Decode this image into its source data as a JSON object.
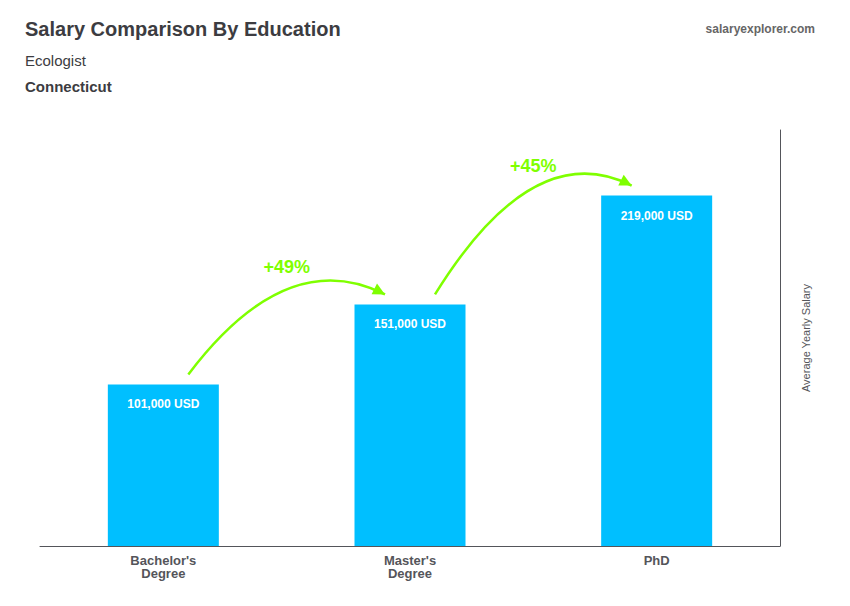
{
  "chart_data": {
    "type": "bar",
    "title": "Salary Comparison By Education",
    "subtitle": [
      "Ecologist",
      "Connecticut"
    ],
    "source": "salaryexplorer.com",
    "y_label": "Average Yearly Salary",
    "categories": [
      "Bachelor's\nDegree",
      "Master's\nDegree",
      "PhD"
    ],
    "values": [
      101000,
      151000,
      219000
    ],
    "value_labels": [
      "101,000 USD",
      "151,000 USD",
      "219,000 USD"
    ],
    "data_labels": true,
    "color": "#00BFFF",
    "annotations": [
      {
        "text": "+49%",
        "color": "#7FFF00"
      },
      {
        "text": "+45%",
        "color": "#7FFF00"
      }
    ],
    "ylim": [
      0,
      260000
    ],
    "grid": false,
    "tick_labels": "x"
  }
}
